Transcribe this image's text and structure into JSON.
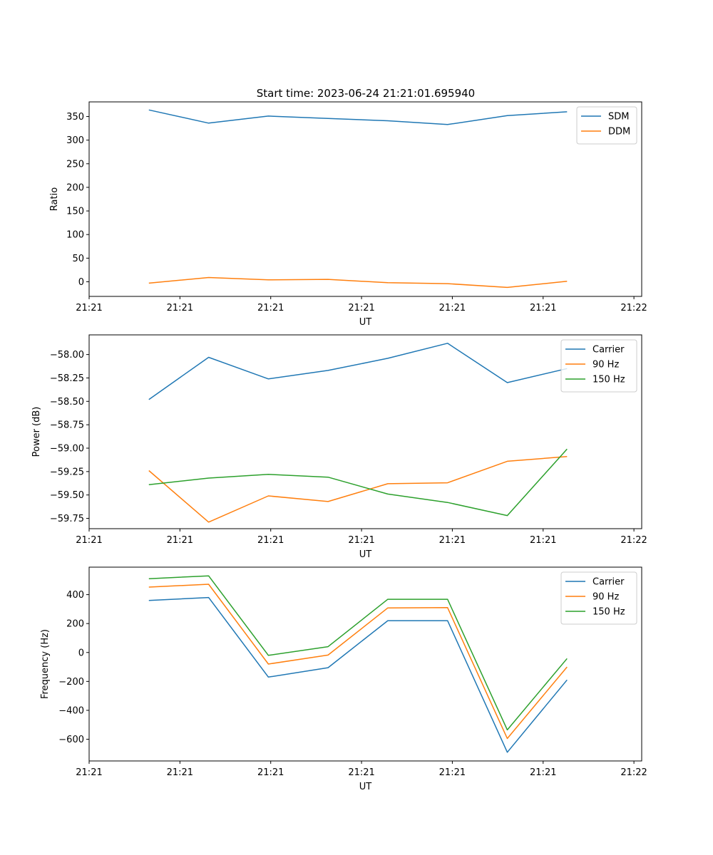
{
  "figure": {
    "title": "Start time: 2023-06-24 21:21:01.695940"
  },
  "colors": {
    "blue": "#1f77b4",
    "orange": "#ff7f0e",
    "green": "#2ca02c"
  },
  "chart_data": [
    {
      "type": "line",
      "title": "Start time: 2023-06-24 21:21:01.695940",
      "xlabel": "UT",
      "ylabel": "Ratio",
      "x": [
        1,
        2,
        3,
        4,
        5,
        6,
        7,
        8
      ],
      "xlim": [
        0,
        9.25
      ],
      "xtick_positions": [
        0,
        1.52,
        3.04,
        4.56,
        6.08,
        7.6,
        9.12
      ],
      "xtick_labels": [
        "21:21",
        "21:21",
        "21:21",
        "21:21",
        "21:21",
        "21:21",
        "21:22"
      ],
      "ylim": [
        -31,
        381
      ],
      "yticks": [
        0,
        50,
        100,
        150,
        200,
        250,
        300,
        350
      ],
      "ytick_labels": [
        "0",
        "50",
        "100",
        "150",
        "200",
        "250",
        "300",
        "350"
      ],
      "grid": false,
      "legend": "upper right",
      "series": [
        {
          "name": "SDM",
          "color": "#1f77b4",
          "values": [
            364,
            336,
            351,
            346,
            341,
            333,
            352,
            360
          ]
        },
        {
          "name": "DDM",
          "color": "#ff7f0e",
          "values": [
            -3,
            9,
            4,
            5,
            -2,
            -4,
            -12,
            1
          ]
        }
      ]
    },
    {
      "type": "line",
      "title": "",
      "xlabel": "UT",
      "ylabel": "Power (dB)",
      "x": [
        1,
        2,
        3,
        4,
        5,
        6,
        7,
        8
      ],
      "xlim": [
        0,
        9.25
      ],
      "xtick_positions": [
        0,
        1.52,
        3.04,
        4.56,
        6.08,
        7.6,
        9.12
      ],
      "xtick_labels": [
        "21:21",
        "21:21",
        "21:21",
        "21:21",
        "21:21",
        "21:21",
        "21:22"
      ],
      "ylim": [
        -59.86,
        -57.79
      ],
      "yticks": [
        -59.75,
        -59.5,
        -59.25,
        -59.0,
        -58.75,
        -58.5,
        -58.25,
        -58.0
      ],
      "ytick_labels": [
        "−59.75",
        "−59.50",
        "−59.25",
        "−59.00",
        "−58.75",
        "−58.50",
        "−58.25",
        "−58.00"
      ],
      "grid": false,
      "legend": "upper right",
      "series": [
        {
          "name": "Carrier",
          "color": "#1f77b4",
          "values": [
            -58.48,
            -58.03,
            -58.26,
            -58.17,
            -58.04,
            -57.88,
            -58.3,
            -58.15
          ]
        },
        {
          "name": "90 Hz",
          "color": "#ff7f0e",
          "values": [
            -59.24,
            -59.79,
            -59.51,
            -59.57,
            -59.38,
            -59.37,
            -59.14,
            -59.09
          ]
        },
        {
          "name": "150 Hz",
          "color": "#2ca02c",
          "values": [
            -59.39,
            -59.32,
            -59.28,
            -59.31,
            -59.49,
            -59.58,
            -59.72,
            -59.01
          ]
        }
      ]
    },
    {
      "type": "line",
      "title": "",
      "xlabel": "UT",
      "ylabel": "Frequency (Hz)",
      "x": [
        1,
        2,
        3,
        4,
        5,
        6,
        7,
        8
      ],
      "xlim": [
        0,
        9.25
      ],
      "xtick_positions": [
        0,
        1.52,
        3.04,
        4.56,
        6.08,
        7.6,
        9.12
      ],
      "xtick_labels": [
        "21:21",
        "21:21",
        "21:21",
        "21:21",
        "21:21",
        "21:21",
        "21:22"
      ],
      "ylim": [
        -750,
        590
      ],
      "yticks": [
        -600,
        -400,
        -200,
        0,
        200,
        400
      ],
      "ytick_labels": [
        "−600",
        "−400",
        "−200",
        "0",
        "200",
        "400"
      ],
      "grid": false,
      "legend": "upper right",
      "series": [
        {
          "name": "Carrier",
          "color": "#1f77b4",
          "values": [
            360,
            380,
            -170,
            -105,
            220,
            220,
            -690,
            -190
          ]
        },
        {
          "name": "90 Hz",
          "color": "#ff7f0e",
          "values": [
            452,
            472,
            -80,
            -18,
            308,
            310,
            -595,
            -100
          ]
        },
        {
          "name": "150 Hz",
          "color": "#2ca02c",
          "values": [
            510,
            530,
            -20,
            40,
            368,
            368,
            -535,
            -42
          ]
        }
      ]
    }
  ]
}
